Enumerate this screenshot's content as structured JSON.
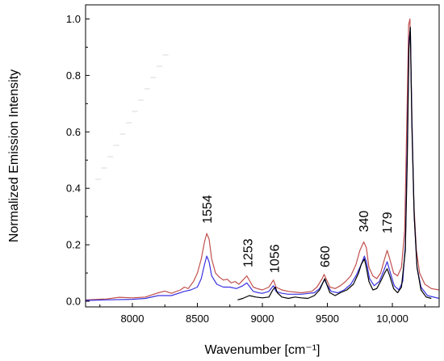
{
  "chart_data": {
    "type": "line",
    "xlabel": "Wavenumber [cm⁻¹]",
    "ylabel": "Normalized Emission Intensity",
    "xlim": [
      7640,
      10360
    ],
    "ylim": [
      -0.02,
      1.05
    ],
    "x_ticks": [
      {
        "value": 8000,
        "label": "8000"
      },
      {
        "value": 8500,
        "label": "8500"
      },
      {
        "value": 9000,
        "label": "9000"
      },
      {
        "value": 9500,
        "label": "9500"
      },
      {
        "value": 10000,
        "label": "10,000"
      }
    ],
    "y_ticks": [
      {
        "value": 0.0,
        "label": "0.0"
      },
      {
        "value": 0.2,
        "label": "0.2"
      },
      {
        "value": 0.4,
        "label": "0.4"
      },
      {
        "value": 0.6,
        "label": "0.6"
      },
      {
        "value": 0.8,
        "label": "0.8"
      },
      {
        "value": 1.0,
        "label": "1.0"
      }
    ],
    "grid": false,
    "legend": "none",
    "series": [
      {
        "color": "#c0504d",
        "points": [
          [
            7640,
            0.005
          ],
          [
            7800,
            0.008
          ],
          [
            7900,
            0.014
          ],
          [
            8000,
            0.012
          ],
          [
            8100,
            0.015
          ],
          [
            8200,
            0.03
          ],
          [
            8250,
            0.036
          ],
          [
            8300,
            0.028
          ],
          [
            8370,
            0.04
          ],
          [
            8400,
            0.05
          ],
          [
            8430,
            0.045
          ],
          [
            8470,
            0.07
          ],
          [
            8500,
            0.1
          ],
          [
            8530,
            0.15
          ],
          [
            8555,
            0.21
          ],
          [
            8572,
            0.24
          ],
          [
            8590,
            0.22
          ],
          [
            8610,
            0.15
          ],
          [
            8640,
            0.1
          ],
          [
            8670,
            0.085
          ],
          [
            8700,
            0.075
          ],
          [
            8730,
            0.078
          ],
          [
            8760,
            0.065
          ],
          [
            8790,
            0.07
          ],
          [
            8820,
            0.06
          ],
          [
            8850,
            0.075
          ],
          [
            8880,
            0.09
          ],
          [
            8905,
            0.07
          ],
          [
            8930,
            0.05
          ],
          [
            8960,
            0.045
          ],
          [
            9000,
            0.04
          ],
          [
            9050,
            0.05
          ],
          [
            9085,
            0.075
          ],
          [
            9105,
            0.05
          ],
          [
            9150,
            0.04
          ],
          [
            9200,
            0.035
          ],
          [
            9300,
            0.03
          ],
          [
            9380,
            0.035
          ],
          [
            9420,
            0.05
          ],
          [
            9460,
            0.08
          ],
          [
            9475,
            0.095
          ],
          [
            9490,
            0.08
          ],
          [
            9520,
            0.05
          ],
          [
            9560,
            0.045
          ],
          [
            9600,
            0.055
          ],
          [
            9640,
            0.07
          ],
          [
            9680,
            0.09
          ],
          [
            9720,
            0.13
          ],
          [
            9750,
            0.18
          ],
          [
            9780,
            0.21
          ],
          [
            9800,
            0.19
          ],
          [
            9820,
            0.12
          ],
          [
            9850,
            0.09
          ],
          [
            9880,
            0.08
          ],
          [
            9910,
            0.1
          ],
          [
            9940,
            0.15
          ],
          [
            9960,
            0.18
          ],
          [
            9980,
            0.15
          ],
          [
            10010,
            0.1
          ],
          [
            10040,
            0.09
          ],
          [
            10070,
            0.12
          ],
          [
            10095,
            0.25
          ],
          [
            10110,
            0.6
          ],
          [
            10125,
            0.98
          ],
          [
            10135,
            1.0
          ],
          [
            10148,
            0.7
          ],
          [
            10165,
            0.35
          ],
          [
            10185,
            0.18
          ],
          [
            10210,
            0.1
          ],
          [
            10250,
            0.06
          ],
          [
            10300,
            0.045
          ],
          [
            10360,
            0.04
          ]
        ]
      },
      {
        "color": "#3b32e0",
        "points": [
          [
            7640,
            0.003
          ],
          [
            7800,
            0.005
          ],
          [
            8000,
            0.007
          ],
          [
            8100,
            0.01
          ],
          [
            8200,
            0.02
          ],
          [
            8300,
            0.02
          ],
          [
            8400,
            0.035
          ],
          [
            8450,
            0.04
          ],
          [
            8500,
            0.05
          ],
          [
            8530,
            0.08
          ],
          [
            8555,
            0.13
          ],
          [
            8572,
            0.16
          ],
          [
            8590,
            0.14
          ],
          [
            8610,
            0.09
          ],
          [
            8650,
            0.06
          ],
          [
            8700,
            0.05
          ],
          [
            8750,
            0.05
          ],
          [
            8800,
            0.045
          ],
          [
            8850,
            0.055
          ],
          [
            8880,
            0.065
          ],
          [
            8905,
            0.05
          ],
          [
            8930,
            0.035
          ],
          [
            8970,
            0.03
          ],
          [
            9000,
            0.028
          ],
          [
            9050,
            0.035
          ],
          [
            9085,
            0.055
          ],
          [
            9105,
            0.035
          ],
          [
            9150,
            0.028
          ],
          [
            9200,
            0.025
          ],
          [
            9300,
            0.025
          ],
          [
            9400,
            0.03
          ],
          [
            9440,
            0.045
          ],
          [
            9470,
            0.07
          ],
          [
            9480,
            0.075
          ],
          [
            9495,
            0.06
          ],
          [
            9530,
            0.035
          ],
          [
            9580,
            0.03
          ],
          [
            9630,
            0.04
          ],
          [
            9680,
            0.06
          ],
          [
            9720,
            0.09
          ],
          [
            9760,
            0.13
          ],
          [
            9785,
            0.16
          ],
          [
            9800,
            0.14
          ],
          [
            9825,
            0.08
          ],
          [
            9860,
            0.055
          ],
          [
            9900,
            0.07
          ],
          [
            9935,
            0.11
          ],
          [
            9960,
            0.14
          ],
          [
            9985,
            0.1
          ],
          [
            10015,
            0.055
          ],
          [
            10050,
            0.04
          ],
          [
            10080,
            0.07
          ],
          [
            10100,
            0.2
          ],
          [
            10115,
            0.55
          ],
          [
            10128,
            0.92
          ],
          [
            10138,
            0.97
          ],
          [
            10150,
            0.65
          ],
          [
            10168,
            0.3
          ],
          [
            10190,
            0.12
          ],
          [
            10220,
            0.05
          ],
          [
            10270,
            0.02
          ],
          [
            10360,
            0.01
          ]
        ]
      },
      {
        "color": "#000000",
        "points": [
          [
            8810,
            0.005
          ],
          [
            8850,
            0.01
          ],
          [
            8900,
            0.02
          ],
          [
            8950,
            0.015
          ],
          [
            9000,
            0.012
          ],
          [
            9050,
            0.015
          ],
          [
            9080,
            0.04
          ],
          [
            9100,
            0.05
          ],
          [
            9115,
            0.03
          ],
          [
            9150,
            0.015
          ],
          [
            9200,
            0.01
          ],
          [
            9250,
            0.015
          ],
          [
            9300,
            0.012
          ],
          [
            9350,
            0.01
          ],
          [
            9400,
            0.02
          ],
          [
            9440,
            0.04
          ],
          [
            9470,
            0.07
          ],
          [
            9480,
            0.08
          ],
          [
            9495,
            0.06
          ],
          [
            9520,
            0.03
          ],
          [
            9560,
            0.02
          ],
          [
            9600,
            0.03
          ],
          [
            9650,
            0.04
          ],
          [
            9700,
            0.06
          ],
          [
            9740,
            0.1
          ],
          [
            9760,
            0.13
          ],
          [
            9785,
            0.15
          ],
          [
            9800,
            0.12
          ],
          [
            9820,
            0.07
          ],
          [
            9850,
            0.04
          ],
          [
            9880,
            0.045
          ],
          [
            9910,
            0.07
          ],
          [
            9940,
            0.1
          ],
          [
            9960,
            0.115
          ],
          [
            9980,
            0.09
          ],
          [
            10010,
            0.045
          ],
          [
            10040,
            0.03
          ],
          [
            10070,
            0.05
          ],
          [
            10100,
            0.18
          ],
          [
            10115,
            0.5
          ],
          [
            10128,
            0.9
          ],
          [
            10138,
            0.97
          ],
          [
            10150,
            0.62
          ],
          [
            10168,
            0.3
          ],
          [
            10190,
            0.12
          ],
          [
            10220,
            0.04
          ],
          [
            10260,
            0.015
          ],
          [
            10300,
            0.01
          ]
        ]
      }
    ],
    "annotations": [
      {
        "text": "1554",
        "x": 8572,
        "y": 0.275
      },
      {
        "text": "1253",
        "x": 8885,
        "y": 0.12
      },
      {
        "text": "1056",
        "x": 9090,
        "y": 0.1
      },
      {
        "text": "660",
        "x": 9478,
        "y": 0.12
      },
      {
        "text": "340",
        "x": 9775,
        "y": 0.245
      },
      {
        "text": "179",
        "x": 9955,
        "y": 0.24
      }
    ]
  }
}
